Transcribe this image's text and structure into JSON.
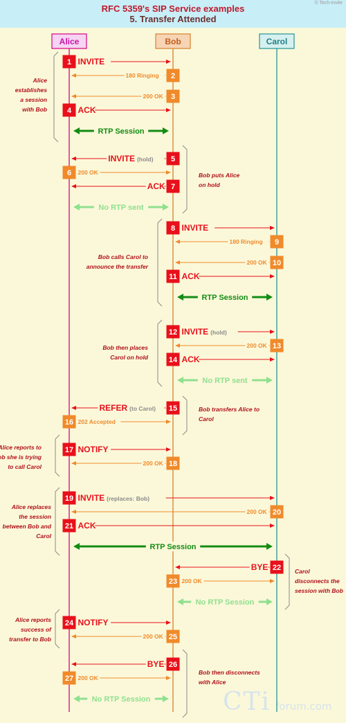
{
  "header": {
    "title": "RFC 5359's SIP Service examples",
    "subtitle": "5. Transfer Attended",
    "copyright": "© Tech-invite"
  },
  "participants": [
    {
      "name": "Alice"
    },
    {
      "name": "Bob"
    },
    {
      "name": "Carol"
    }
  ],
  "watermark": {
    "main": "CTi",
    "sub": "forum.com"
  },
  "colors": {
    "alice": "#d8148c",
    "bob": "#d88a3a",
    "carol": "#2f9c9c",
    "request": "#e8101a",
    "response": "#f08a2a",
    "rtp": "#138c13",
    "no_rtp": "#8fe08f",
    "note": "#b0101a"
  },
  "messages": [
    {
      "n": "1",
      "from": 0,
      "to": 1,
      "label": "INVITE",
      "kind": "req"
    },
    {
      "n": "2",
      "from": 1,
      "to": 0,
      "label": "180 Ringing",
      "kind": "resp"
    },
    {
      "n": "3",
      "from": 1,
      "to": 0,
      "label": "200 OK",
      "kind": "resp"
    },
    {
      "n": "4",
      "from": 0,
      "to": 1,
      "label": "ACK",
      "kind": "req"
    },
    {
      "n": "",
      "from": 0,
      "to": 1,
      "label": "RTP Session",
      "kind": "rtp"
    },
    {
      "n": "5",
      "from": 1,
      "to": 0,
      "label": "INVITE",
      "extra": "(hold)",
      "kind": "req"
    },
    {
      "n": "6",
      "from": 0,
      "to": 1,
      "label": "200 OK",
      "kind": "resp"
    },
    {
      "n": "7",
      "from": 1,
      "to": 0,
      "label": "ACK",
      "kind": "req"
    },
    {
      "n": "",
      "from": 0,
      "to": 1,
      "label": "No RTP sent",
      "kind": "nortp"
    },
    {
      "n": "8",
      "from": 1,
      "to": 2,
      "label": "INVITE",
      "kind": "req"
    },
    {
      "n": "9",
      "from": 2,
      "to": 1,
      "label": "180 Ringing",
      "kind": "resp"
    },
    {
      "n": "10",
      "from": 2,
      "to": 1,
      "label": "200 OK",
      "kind": "resp"
    },
    {
      "n": "11",
      "from": 1,
      "to": 2,
      "label": "ACK",
      "kind": "req"
    },
    {
      "n": "",
      "from": 1,
      "to": 2,
      "label": "RTP Session",
      "kind": "rtp"
    },
    {
      "n": "12",
      "from": 1,
      "to": 2,
      "label": "INVITE",
      "extra": "(hold)",
      "kind": "req"
    },
    {
      "n": "13",
      "from": 2,
      "to": 1,
      "label": "200 OK",
      "kind": "resp"
    },
    {
      "n": "14",
      "from": 1,
      "to": 2,
      "label": "ACK",
      "kind": "req"
    },
    {
      "n": "",
      "from": 1,
      "to": 2,
      "label": "No RTP sent",
      "kind": "nortp"
    },
    {
      "n": "15",
      "from": 1,
      "to": 0,
      "label": "REFER",
      "extra": "(to Carol)",
      "kind": "req"
    },
    {
      "n": "16",
      "from": 0,
      "to": 1,
      "label": "202 Accepted",
      "kind": "resp"
    },
    {
      "n": "17",
      "from": 0,
      "to": 1,
      "label": "NOTIFY",
      "kind": "req"
    },
    {
      "n": "18",
      "from": 1,
      "to": 0,
      "label": "200 OK",
      "kind": "resp"
    },
    {
      "n": "19",
      "from": 0,
      "to": 2,
      "label": "INVITE",
      "extra": "(replaces: Bob)",
      "kind": "req"
    },
    {
      "n": "20",
      "from": 2,
      "to": 0,
      "label": "200 OK",
      "kind": "resp"
    },
    {
      "n": "21",
      "from": 0,
      "to": 2,
      "label": "ACK",
      "kind": "req"
    },
    {
      "n": "",
      "from": 0,
      "to": 2,
      "label": "RTP Session",
      "kind": "rtp"
    },
    {
      "n": "22",
      "from": 2,
      "to": 1,
      "label": "BYE",
      "kind": "req"
    },
    {
      "n": "23",
      "from": 1,
      "to": 2,
      "label": "200 OK",
      "kind": "resp"
    },
    {
      "n": "",
      "from": 1,
      "to": 2,
      "label": "No RTP Session",
      "kind": "nortp"
    },
    {
      "n": "24",
      "from": 0,
      "to": 1,
      "label": "NOTIFY",
      "kind": "req"
    },
    {
      "n": "25",
      "from": 1,
      "to": 0,
      "label": "200 OK",
      "kind": "resp"
    },
    {
      "n": "26",
      "from": 1,
      "to": 0,
      "label": "BYE",
      "kind": "req"
    },
    {
      "n": "27",
      "from": 0,
      "to": 1,
      "label": "200 OK",
      "kind": "resp"
    },
    {
      "n": "",
      "from": 0,
      "to": 1,
      "label": "No RTP Session",
      "kind": "nortp"
    }
  ],
  "notes": [
    {
      "lines": [
        "Alice",
        "establishes",
        "a session",
        "with Bob"
      ]
    },
    {
      "lines": [
        "Bob puts Alice",
        "on hold"
      ]
    },
    {
      "lines": [
        "Bob calls Carol to",
        "announce the transfer"
      ]
    },
    {
      "lines": [
        "Bob then places",
        "Carol on hold"
      ]
    },
    {
      "lines": [
        "Bob transfers Alice to",
        "Carol"
      ]
    },
    {
      "lines": [
        "Alice reports to",
        "Bob she is trying",
        "to call Carol"
      ]
    },
    {
      "lines": [
        "Alice replaces",
        "the session",
        "between Bob and",
        "Carol"
      ]
    },
    {
      "lines": [
        "Carol",
        "disconnects the",
        "session with Bob"
      ]
    },
    {
      "lines": [
        "Alice reports",
        "success of",
        "transfer to Bob"
      ]
    },
    {
      "lines": [
        "Bob then disconnects",
        "with Alice"
      ]
    }
  ]
}
